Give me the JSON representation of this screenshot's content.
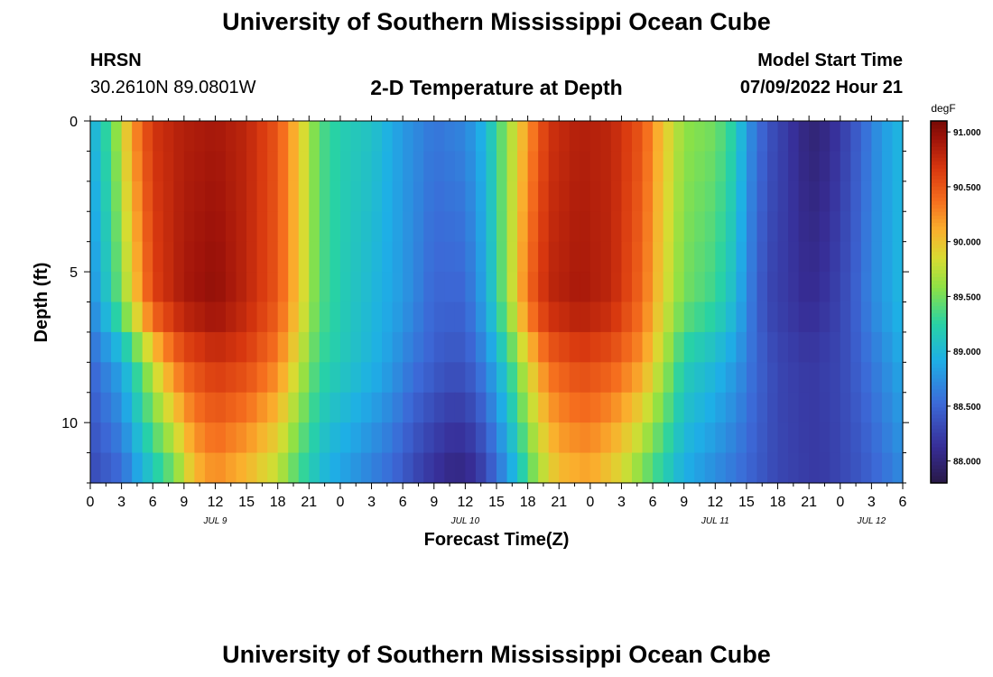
{
  "header": {
    "title": "University of Southern Mississippi Ocean Cube",
    "station": "HRSN",
    "coords": "30.2610N  89.0801W",
    "subtitle": "2-D Temperature at Depth",
    "model_start_label": "Model Start Time",
    "model_start_value": "07/09/2022 Hour 21"
  },
  "footer": {
    "title": "University of Southern Mississippi Ocean Cube"
  },
  "chart_data": {
    "type": "heatmap",
    "title": "2-D Temperature at Depth",
    "xlabel": "Forecast Time(Z)",
    "ylabel": "Depth (ft)",
    "x_tick_labels": [
      "0",
      "3",
      "6",
      "9",
      "12",
      "15",
      "18",
      "21",
      "0",
      "3",
      "6",
      "9",
      "12",
      "15",
      "18",
      "21",
      "0",
      "3",
      "6",
      "9",
      "12",
      "15",
      "18",
      "21",
      "0",
      "3",
      "6"
    ],
    "date_labels": [
      {
        "label": "JUL 9",
        "hour": 12
      },
      {
        "label": "JUL 10",
        "hour": 36
      },
      {
        "label": "JUL 11",
        "hour": 60
      },
      {
        "label": "JUL 12",
        "hour": 75
      }
    ],
    "x_range_hours": [
      0,
      78
    ],
    "y_ticks": [
      0,
      5,
      10
    ],
    "ylim": [
      0,
      12
    ],
    "y_inverted": true,
    "colorbar": {
      "unit": "degF",
      "tick_labels": [
        "91.000",
        "90.500",
        "90.000",
        "89.500",
        "89.000",
        "88.500",
        "88.000"
      ],
      "tick_values": [
        91.0,
        90.5,
        90.0,
        89.5,
        89.0,
        88.5,
        88.0
      ],
      "range": [
        87.8,
        91.1
      ]
    },
    "grid_columns": 78,
    "grid_rows": 12,
    "temperature_keyframes_by_depth": {
      "0": [
        [
          0,
          88.9
        ],
        [
          2,
          89.4
        ],
        [
          4,
          90.2
        ],
        [
          6,
          90.7
        ],
        [
          9,
          90.85
        ],
        [
          12,
          90.9
        ],
        [
          15,
          90.8
        ],
        [
          18,
          90.5
        ],
        [
          20,
          90.0
        ],
        [
          22,
          89.4
        ],
        [
          24,
          89.2
        ],
        [
          27,
          89.1
        ],
        [
          30,
          88.8
        ],
        [
          33,
          88.6
        ],
        [
          36,
          88.7
        ],
        [
          38,
          89.0
        ],
        [
          40,
          89.6
        ],
        [
          42,
          90.2
        ],
        [
          44,
          90.7
        ],
        [
          47,
          90.85
        ],
        [
          50,
          90.8
        ],
        [
          53,
          90.5
        ],
        [
          55,
          90.0
        ],
        [
          57,
          89.6
        ],
        [
          60,
          89.5
        ],
        [
          62,
          89.2
        ],
        [
          63,
          88.8
        ],
        [
          65,
          88.4
        ],
        [
          67,
          88.2
        ],
        [
          69,
          88.0
        ],
        [
          70,
          88.0
        ],
        [
          72,
          88.2
        ],
        [
          74,
          88.5
        ],
        [
          76,
          88.8
        ],
        [
          78,
          89.0
        ]
      ],
      "6": [
        [
          0,
          88.7
        ],
        [
          2,
          89.2
        ],
        [
          4,
          89.9
        ],
        [
          6,
          90.6
        ],
        [
          9,
          90.9
        ],
        [
          12,
          91.0
        ],
        [
          15,
          90.8
        ],
        [
          18,
          90.5
        ],
        [
          20,
          90.0
        ],
        [
          22,
          89.4
        ],
        [
          24,
          89.2
        ],
        [
          27,
          89.0
        ],
        [
          30,
          88.8
        ],
        [
          33,
          88.5
        ],
        [
          36,
          88.5
        ],
        [
          38,
          88.9
        ],
        [
          40,
          89.6
        ],
        [
          42,
          90.4
        ],
        [
          44,
          90.8
        ],
        [
          47,
          90.9
        ],
        [
          50,
          90.8
        ],
        [
          53,
          90.4
        ],
        [
          55,
          89.9
        ],
        [
          57,
          89.5
        ],
        [
          60,
          89.3
        ],
        [
          62,
          89.0
        ],
        [
          63,
          88.7
        ],
        [
          65,
          88.3
        ],
        [
          67,
          88.2
        ],
        [
          69,
          88.1
        ],
        [
          71,
          88.2
        ],
        [
          73,
          88.4
        ],
        [
          75,
          88.7
        ],
        [
          78,
          89.0
        ]
      ],
      "8": [
        [
          0,
          88.5
        ],
        [
          3,
          88.9
        ],
        [
          5,
          89.5
        ],
        [
          7,
          90.1
        ],
        [
          9,
          90.5
        ],
        [
          12,
          90.7
        ],
        [
          15,
          90.6
        ],
        [
          18,
          90.3
        ],
        [
          20,
          89.8
        ],
        [
          22,
          89.3
        ],
        [
          25,
          89.1
        ],
        [
          28,
          88.9
        ],
        [
          31,
          88.6
        ],
        [
          34,
          88.4
        ],
        [
          36,
          88.4
        ],
        [
          38,
          88.7
        ],
        [
          40,
          89.2
        ],
        [
          42,
          89.9
        ],
        [
          44,
          90.4
        ],
        [
          47,
          90.6
        ],
        [
          50,
          90.5
        ],
        [
          53,
          90.2
        ],
        [
          55,
          89.7
        ],
        [
          57,
          89.2
        ],
        [
          60,
          89.0
        ],
        [
          62,
          88.8
        ],
        [
          64,
          88.5
        ],
        [
          66,
          88.3
        ],
        [
          69,
          88.2
        ],
        [
          72,
          88.3
        ],
        [
          75,
          88.6
        ],
        [
          78,
          88.9
        ]
      ],
      "12": [
        [
          0,
          88.3
        ],
        [
          3,
          88.5
        ],
        [
          5,
          88.9
        ],
        [
          8,
          89.4
        ],
        [
          10,
          90.0
        ],
        [
          12,
          90.2
        ],
        [
          15,
          90.0
        ],
        [
          18,
          89.7
        ],
        [
          20,
          89.3
        ],
        [
          23,
          88.9
        ],
        [
          26,
          88.7
        ],
        [
          29,
          88.5
        ],
        [
          32,
          88.2
        ],
        [
          35,
          88.0
        ],
        [
          37,
          88.1
        ],
        [
          39,
          88.5
        ],
        [
          41,
          89.0
        ],
        [
          43,
          89.6
        ],
        [
          45,
          90.0
        ],
        [
          48,
          90.1
        ],
        [
          51,
          89.8
        ],
        [
          54,
          89.3
        ],
        [
          57,
          88.9
        ],
        [
          60,
          88.7
        ],
        [
          63,
          88.5
        ],
        [
          66,
          88.3
        ],
        [
          70,
          88.2
        ],
        [
          74,
          88.4
        ],
        [
          78,
          88.7
        ]
      ]
    }
  }
}
